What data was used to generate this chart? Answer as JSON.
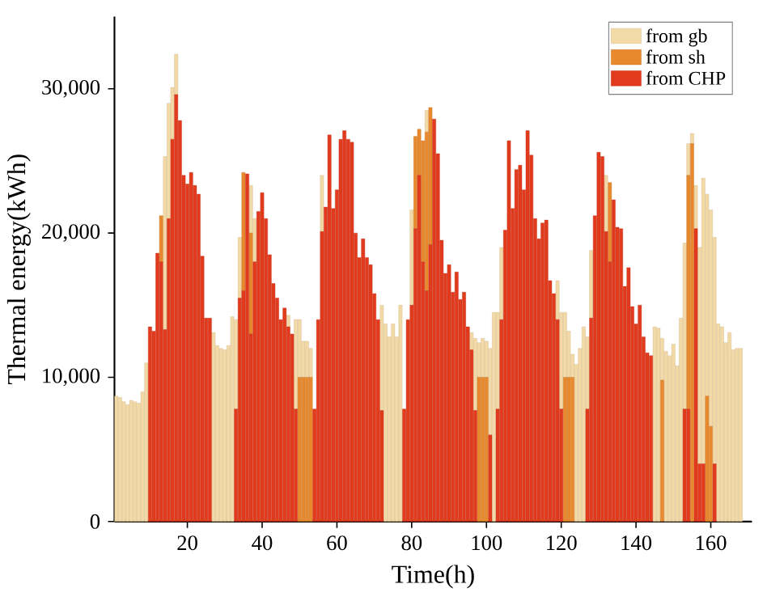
{
  "chart_data": {
    "type": "bar",
    "stacked": true,
    "xlabel": "Time(h)",
    "ylabel": "Thermal energy(kWh)",
    "x": [
      1,
      2,
      3,
      4,
      5,
      6,
      7,
      8,
      9,
      10,
      11,
      12,
      13,
      14,
      15,
      16,
      17,
      18,
      19,
      20,
      21,
      22,
      23,
      24,
      25,
      26,
      27,
      28,
      29,
      30,
      31,
      32,
      33,
      34,
      35,
      36,
      37,
      38,
      39,
      40,
      41,
      42,
      43,
      44,
      45,
      46,
      47,
      48,
      49,
      50,
      51,
      52,
      53,
      54,
      55,
      56,
      57,
      58,
      59,
      60,
      61,
      62,
      63,
      64,
      65,
      66,
      67,
      68,
      69,
      70,
      71,
      72,
      73,
      74,
      75,
      76,
      77,
      78,
      79,
      80,
      81,
      82,
      83,
      84,
      85,
      86,
      87,
      88,
      89,
      90,
      91,
      92,
      93,
      94,
      95,
      96,
      97,
      98,
      99,
      100,
      101,
      102,
      103,
      104,
      105,
      106,
      107,
      108,
      109,
      110,
      111,
      112,
      113,
      114,
      115,
      116,
      117,
      118,
      119,
      120,
      121,
      122,
      123,
      124,
      125,
      126,
      127,
      128,
      129,
      130,
      131,
      132,
      133,
      134,
      135,
      136,
      137,
      138,
      139,
      140,
      141,
      142,
      143,
      144,
      145,
      146,
      147,
      148,
      149,
      150,
      151,
      152,
      153,
      154,
      155,
      156,
      157,
      158,
      159,
      160,
      161,
      162,
      163,
      164,
      165,
      166,
      167,
      168
    ],
    "series": [
      {
        "name": "from CHP",
        "color": "#e23a1c",
        "values": [
          0,
          0,
          0,
          0,
          0,
          0,
          0,
          0,
          0,
          13500,
          13200,
          18600,
          18000,
          13300,
          21000,
          26500,
          29600,
          27800,
          24000,
          23400,
          24200,
          23300,
          22700,
          18400,
          14100,
          14100,
          0,
          0,
          0,
          0,
          0,
          0,
          7800,
          15500,
          16000,
          24100,
          13000,
          18000,
          21500,
          22800,
          21000,
          18500,
          16500,
          15500,
          14000,
          14800,
          13500,
          13000,
          7800,
          0,
          0,
          0,
          0,
          7800,
          14000,
          20100,
          21800,
          26800,
          21700,
          23000,
          26500,
          27100,
          26500,
          26300,
          20000,
          18300,
          19600,
          18300,
          17800,
          15800,
          14000,
          7700,
          0,
          0,
          0,
          0,
          0,
          7800,
          14000,
          15000,
          20300,
          24000,
          18000,
          16000,
          19200,
          27900,
          25500,
          19500,
          17200,
          17800,
          15900,
          17300,
          15400,
          15900,
          13500,
          11900,
          7700,
          0,
          0,
          0,
          6000,
          0,
          7800,
          14000,
          20200,
          26400,
          21700,
          24400,
          24700,
          23000,
          27100,
          25400,
          21000,
          19600,
          20700,
          20900,
          16700,
          15800,
          14000,
          7800,
          0,
          0,
          0,
          0,
          0,
          0,
          7800,
          14100,
          21200,
          25600,
          25300,
          20100,
          18000,
          22300,
          20400,
          20300,
          16300,
          17600,
          14900,
          13700,
          15000,
          12800,
          11700,
          11500,
          0,
          0,
          0,
          0,
          0,
          0,
          0,
          0,
          7800,
          7800,
          0,
          20300,
          4000,
          4000,
          0,
          0,
          4000,
          0,
          0,
          0,
          0,
          0,
          0,
          0
        ]
      },
      {
        "name": "from sh",
        "color": "#e8892e",
        "values": [
          0,
          0,
          0,
          0,
          0,
          0,
          0,
          0,
          0,
          0,
          0,
          0,
          3200,
          0,
          0,
          0,
          0,
          0,
          0,
          0,
          0,
          0,
          0,
          0,
          0,
          0,
          0,
          0,
          0,
          0,
          0,
          0,
          0,
          0,
          8200,
          0,
          7000,
          0,
          0,
          0,
          0,
          0,
          0,
          0,
          0,
          0,
          0,
          0,
          0,
          10000,
          10000,
          10000,
          10000,
          0,
          0,
          0,
          0,
          0,
          0,
          0,
          0,
          0,
          0,
          0,
          0,
          0,
          0,
          0,
          0,
          0,
          0,
          0,
          0,
          0,
          0,
          0,
          0,
          0,
          0,
          0,
          6400,
          3200,
          8400,
          11000,
          9500,
          0,
          0,
          0,
          0,
          0,
          0,
          0,
          0,
          0,
          0,
          0,
          0,
          10000,
          10000,
          10000,
          0,
          0,
          0,
          0,
          0,
          0,
          0,
          0,
          0,
          0,
          0,
          0,
          0,
          0,
          0,
          0,
          0,
          0,
          0,
          0,
          10000,
          10000,
          10000,
          0,
          0,
          0,
          0,
          0,
          0,
          0,
          0,
          0,
          5500,
          0,
          0,
          0,
          0,
          0,
          0,
          0,
          0,
          0,
          0,
          0,
          0,
          0,
          9800,
          0,
          0,
          0,
          0,
          0,
          0,
          16200,
          26200,
          0,
          0,
          0,
          8700,
          6600,
          0,
          0,
          0,
          0,
          0,
          0,
          0,
          0
        ]
      },
      {
        "name": "from gb",
        "color": "#f2d9a6",
        "values": [
          8700,
          8600,
          8300,
          8100,
          8400,
          8300,
          8200,
          9000,
          11000,
          0,
          0,
          0,
          0,
          12000,
          8000,
          3600,
          2800,
          0,
          0,
          0,
          0,
          0,
          0,
          0,
          0,
          0,
          13100,
          12200,
          12000,
          11900,
          12200,
          14200,
          6200,
          4200,
          0,
          0,
          3300,
          3000,
          0,
          0,
          0,
          0,
          0,
          0,
          0,
          0,
          800,
          0,
          6200,
          4000,
          2500,
          2500,
          2000,
          0,
          0,
          3900,
          0,
          0,
          0,
          0,
          0,
          0,
          0,
          0,
          0,
          0,
          0,
          0,
          0,
          0,
          0,
          7300,
          13700,
          12800,
          13700,
          12800,
          15000,
          0,
          0,
          6600,
          0,
          0,
          0,
          1500,
          0,
          0,
          0,
          0,
          0,
          0,
          0,
          0,
          0,
          0,
          0,
          1200,
          5000,
          2400,
          2700,
          2500,
          6000,
          14500,
          6700,
          5000,
          0,
          0,
          0,
          0,
          0,
          0,
          0,
          0,
          0,
          0,
          0,
          0,
          0,
          0,
          2700,
          6700,
          4500,
          3200,
          1600,
          10900,
          12000,
          13500,
          5000,
          4700,
          0,
          0,
          0,
          3900,
          0,
          0,
          0,
          0,
          0,
          0,
          0,
          0,
          0,
          0,
          0,
          0,
          13500,
          13400,
          2900,
          11800,
          11500,
          12300,
          10800,
          14100,
          11500,
          2200,
          700,
          3000,
          15000,
          19800,
          14000,
          15000,
          15700,
          13700,
          13500,
          12400,
          13100,
          11900,
          12000,
          12000
        ]
      }
    ],
    "xlim": [
      0.5,
      171
    ],
    "ylim": [
      0,
      35000
    ],
    "xticks": [
      20,
      40,
      60,
      80,
      100,
      120,
      140,
      160
    ],
    "yticks": [
      0,
      {
        "value": 10000,
        "label": "10,000"
      },
      {
        "value": 20000,
        "label": "20,000"
      },
      {
        "value": 30000,
        "label": "30,000"
      }
    ],
    "legend": "top right"
  }
}
